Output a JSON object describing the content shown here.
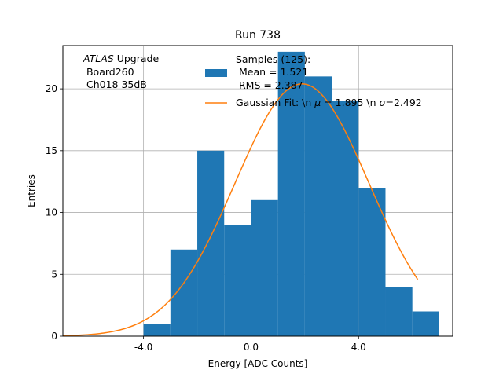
{
  "chart_data": {
    "type": "bar",
    "title": "Run 738",
    "xlabel": "Energy [ADC Counts]",
    "ylabel": "Entries",
    "xlim": [
      -7.0,
      7.5
    ],
    "ylim": [
      0,
      23.5
    ],
    "grid": true,
    "xticks": [
      -4.0,
      0.0,
      4.0
    ],
    "xtick_labels": [
      "-4.0",
      "0.0",
      "4.0"
    ],
    "yticks": [
      0,
      5,
      10,
      15,
      20
    ],
    "ytick_labels": [
      "0",
      "5",
      "10",
      "15",
      "20"
    ],
    "bin_edges": [
      -4.0,
      -3.0,
      -2.0,
      -1.0,
      0.0,
      1.0,
      2.0,
      3.0,
      4.0,
      5.0,
      6.0,
      7.0
    ],
    "values": [
      1,
      7,
      15,
      9,
      11,
      23,
      21,
      19,
      12,
      4,
      2
    ],
    "bar_color": "#1f77b4",
    "fit": {
      "name": "Gaussian Fit",
      "mu": 1.895,
      "sigma": 2.492,
      "amplitude": 20.4,
      "x_range": [
        -7.0,
        6.2
      ],
      "color": "#ff7f0e"
    },
    "annotation": {
      "atlas": "ATLAS",
      "upgrade": " Upgrade",
      "line2": " Board260",
      "line3": " Ch018 35dB"
    },
    "legend": {
      "placement": "top-center",
      "samples_line1": "Samples (125):",
      "samples_line2": " Mean = 1.521",
      "samples_line3": " RMS = 2.387",
      "fit_prefix": "Gaussian Fit: \\n ",
      "fit_mu": "μ",
      "fit_middle": " = 1.895 \\n ",
      "fit_sigma": "σ",
      "fit_suffix": "=2.492"
    }
  }
}
